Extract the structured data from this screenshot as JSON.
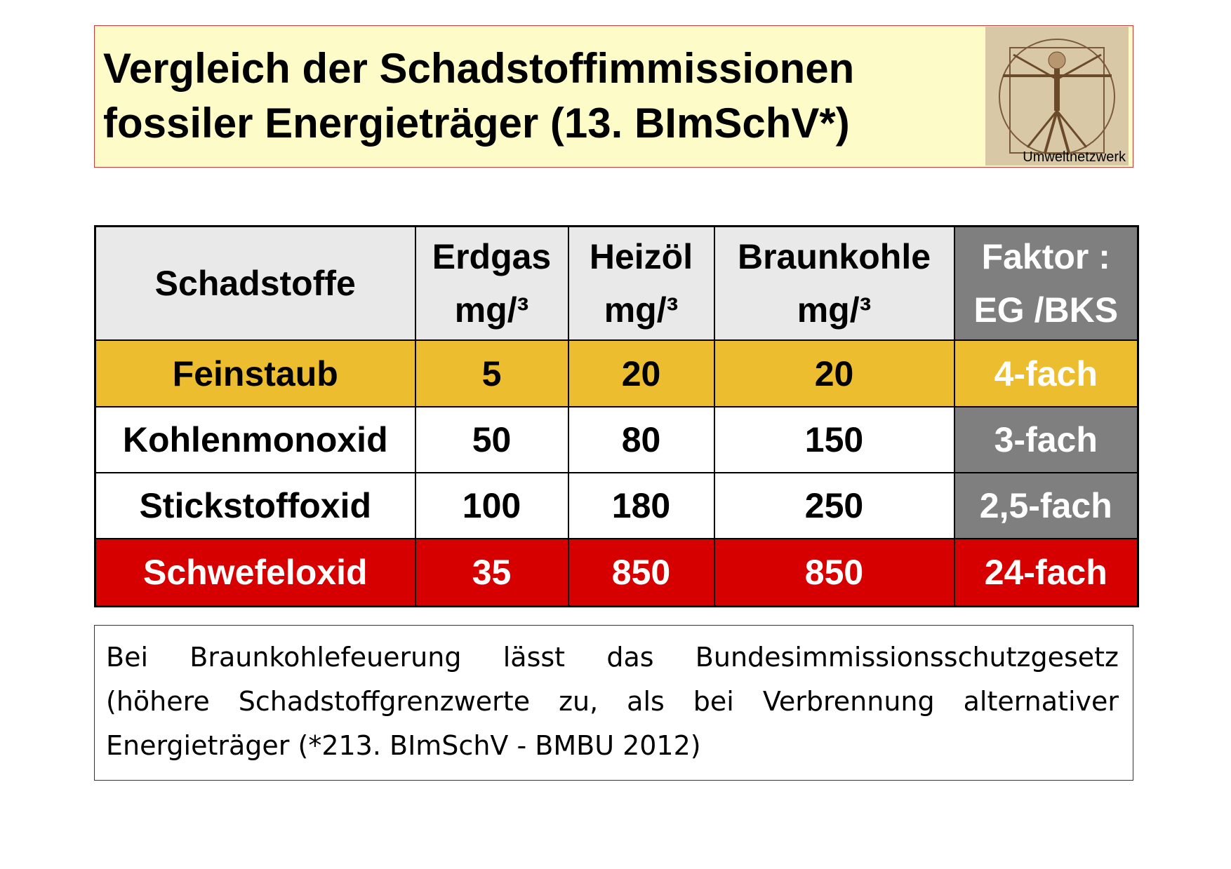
{
  "header": {
    "title_lines": [
      "Vergleich der Schadstoffimmissionen",
      "fossiler Energieträger (13. BImSchV*)"
    ],
    "image_caption": "Umweltnetzwerk"
  },
  "table": {
    "columns": [
      [
        "Schadstoffe"
      ],
      [
        "Erdgas",
        "mg/³"
      ],
      [
        "Heizöl",
        "mg/³"
      ],
      [
        "Braunkohle",
        "mg/³"
      ],
      [
        "Faktor :",
        "EG /BKS"
      ]
    ],
    "rows": [
      [
        "Feinstaub",
        5,
        20,
        20,
        "4-fach"
      ],
      [
        "Kohlenmonoxid",
        50,
        80,
        150,
        "3-fach"
      ],
      [
        "Stickstoffoxid",
        100,
        180,
        250,
        "2,5-fach"
      ],
      [
        "Schwefeloxid",
        35,
        850,
        850,
        "24-fach"
      ]
    ]
  },
  "note": {
    "lines": [
      "Bei Braunkohlefeuerung lässt das Bundesimmissionsschutzgesetz",
      "(höhere Schadstoffgrenzwerte zu, als bei Verbrennung alternativer",
      "Energieträger (*213. BImSchV - BMBU 2012)"
    ]
  }
}
